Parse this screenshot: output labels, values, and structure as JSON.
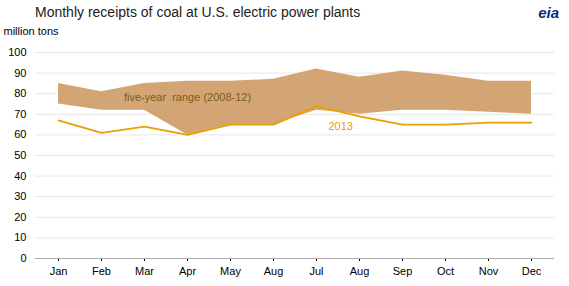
{
  "chart_data": {
    "type": "line",
    "title": "Monthly receipts of coal at U.S. electric power plants",
    "y_label": "million tons",
    "categories": [
      "Jan",
      "Feb",
      "Mar",
      "Apr",
      "May",
      "Aug",
      "Jul",
      "Aug",
      "Sep",
      "Oct",
      "Nov",
      "Dec"
    ],
    "series": [
      {
        "type": "area",
        "color": "#D4A574",
        "lower": [
          75,
          72,
          72,
          60,
          65,
          65,
          72,
          70,
          72,
          72,
          71,
          70
        ],
        "upper": [
          85,
          81,
          85,
          86,
          86,
          87,
          92,
          88,
          91,
          89,
          86,
          86
        ]
      },
      {
        "type": "line",
        "color": "#E8A000",
        "values": [
          67,
          61,
          64,
          60,
          65,
          65,
          74,
          69,
          65,
          65,
          66,
          66
        ]
      }
    ],
    "annotations": [
      {
        "text": "five-year  range (2008-12)",
        "color": "#7B5B1A"
      },
      {
        "text": "2013",
        "color": "#E8A000"
      },
      {
        "text": "eia",
        "color": "#003087"
      }
    ],
    "ylim": [
      0,
      100
    ],
    "yticks": [
      0,
      10,
      20,
      30,
      40,
      50,
      60,
      70,
      80,
      90,
      100
    ],
    "grid": true
  }
}
